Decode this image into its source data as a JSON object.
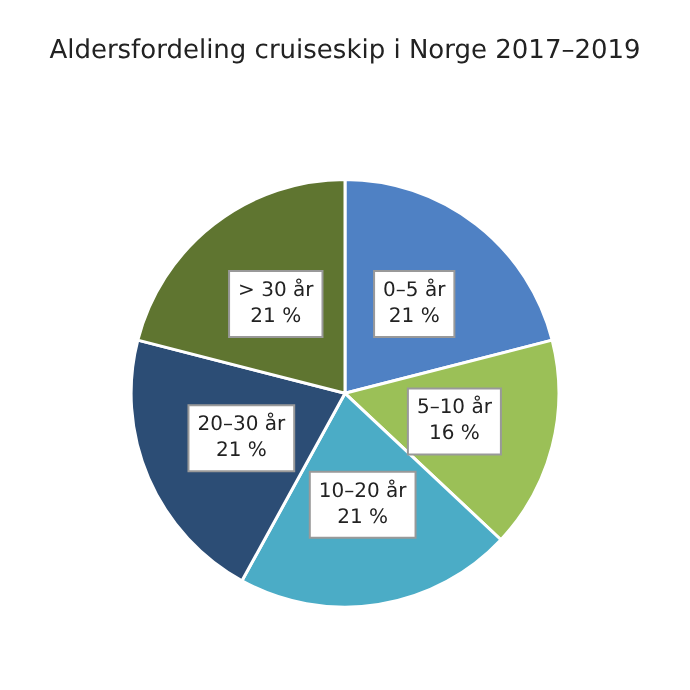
{
  "chart_data": {
    "type": "pie",
    "title": "Aldersfordeling cruiseskip i Norge 2017–2019",
    "categories": [
      "0–5 år",
      "5–10 år",
      "10–20 år",
      "20–30 år",
      "> 30 år"
    ],
    "values": [
      21,
      16,
      21,
      21,
      21
    ],
    "value_labels": [
      "21 %",
      "16 %",
      "21 %",
      "21 %",
      "21 %"
    ],
    "colors": [
      "#4f81c4",
      "#9bc057",
      "#4bacc6",
      "#2c4d75",
      "#5f7530"
    ],
    "legend": false
  }
}
